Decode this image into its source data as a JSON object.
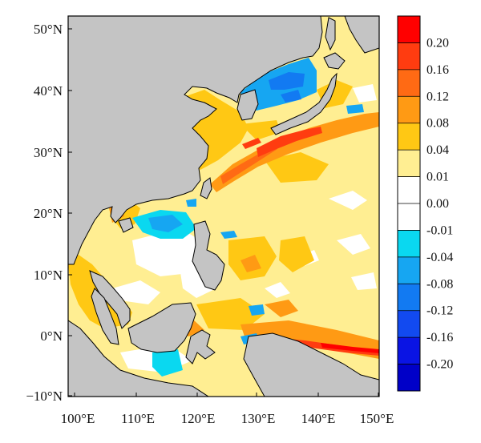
{
  "map": {
    "lat_labels": [
      "50°N",
      "40°N",
      "30°N",
      "20°N",
      "10°N",
      "0°N",
      "−10°N"
    ],
    "lon_labels": [
      "100°E",
      "110°E",
      "120°E",
      "130°E",
      "140°E",
      "150°E"
    ],
    "extent": {
      "lon_min": 99,
      "lon_max": 150,
      "lat_min": -10,
      "lat_max": 52
    }
  },
  "colorbar": {
    "labels": [
      "0.20",
      "0.16",
      "0.12",
      "0.08",
      "0.04",
      "0.01",
      "0.00",
      "-0.01",
      "-0.04",
      "-0.08",
      "-0.12",
      "-0.16",
      "-0.20"
    ],
    "colors": [
      "#ff0000",
      "#ff3c10",
      "#ff6a14",
      "#ff9a14",
      "#ffc814",
      "#ffee92",
      "#ffffff",
      "#ffffff",
      "#0ad8f0",
      "#16a6f2",
      "#127af2",
      "#124af0",
      "#0a14e4",
      "#0000c8"
    ]
  },
  "palette": {
    "land": "#c4c4c4",
    "frame": "#000000",
    "pale_yellow": "#ffee92",
    "yellow": "#ffc814",
    "orange": "#ff9a14",
    "red_orange": "#ff6a14",
    "red": "#ff0000",
    "cyan": "#0ad8f0",
    "light_blue": "#16a6f2",
    "blue": "#127af2"
  }
}
